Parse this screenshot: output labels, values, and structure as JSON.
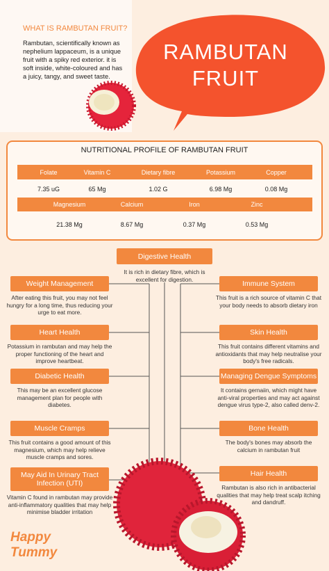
{
  "intro": {
    "heading": "WHAT IS RAMBUTAN FRUIT?",
    "text": "Rambutan, scientifically known as nephelium lappaceum, is a unique fruit with a spiky red exterior. it is soft inside, white-coloured and has a juicy, tangy, and sweet taste."
  },
  "title": {
    "lines": [
      "RAMBUTAN",
      "FRUIT"
    ]
  },
  "nutrition": {
    "title": "NUTRITIONAL PROFILE OF RAMBUTAN FRUIT",
    "rows": [
      {
        "headers": [
          "Folate",
          "Vitamin C",
          "Dietary fibre",
          "Potassium",
          "Copper"
        ],
        "values": [
          "7.35 uG",
          "65 Mg",
          "1.02 G",
          "6.98 Mg",
          "0.08 Mg"
        ]
      },
      {
        "headers": [
          "Magnesium",
          "Calcium",
          "Iron",
          "Zinc"
        ],
        "values": [
          "21.38 Mg",
          "8.67 Mg",
          "0.37 Mg",
          "0.53 Mg"
        ]
      }
    ]
  },
  "benefits": {
    "center": {
      "title": "Digestive Health",
      "text": "It is rich in dietary fibre, which is excellent for digestion."
    },
    "left": [
      {
        "title": "Weight Management",
        "text": "After eating this fruit, you may not feel hungry for a long time, thus reducing your urge to eat more."
      },
      {
        "title": "Heart Health",
        "text": "Potassium in rambutan and may help the proper functioning of the heart and improve heartbeat."
      },
      {
        "title": "Diabetic Health",
        "text": "This may be an excellent glucose management plan for people with diabetes."
      },
      {
        "title": "Muscle Cramps",
        "text": "This fruit contains a good amount of this magnesium, which may help relieve muscle cramps and sores."
      },
      {
        "title": "May Aid In Urinary Tract Infection (UTI)",
        "text": "Vitamin C found in rambutan may provide anti-inflammatory qualities that may help minimise bladder irritation"
      }
    ],
    "right": [
      {
        "title": "Immune System",
        "text": "This fruit is a rich source of vitamin C that your body needs to absorb dietary iron"
      },
      {
        "title": "Skin Health",
        "text": "This fruit contains different vitamins and antioxidants that may help neutralise your body's free radicals."
      },
      {
        "title": "Managing Dengue Symptoms",
        "text": "It contains gernaiin, which might have anti-viral properties and may act against dengue virus type-2, also called denv-2."
      },
      {
        "title": "Bone Health",
        "text": "The body's bones may absorb the calcium in rambutan fruit"
      },
      {
        "title": "Hair Health",
        "text": "Rambutan is also rich in antibacterial qualities that may help treat scalp itching and dandruff."
      }
    ]
  },
  "logo": {
    "lines": [
      "Happy",
      "Tummy"
    ]
  }
}
